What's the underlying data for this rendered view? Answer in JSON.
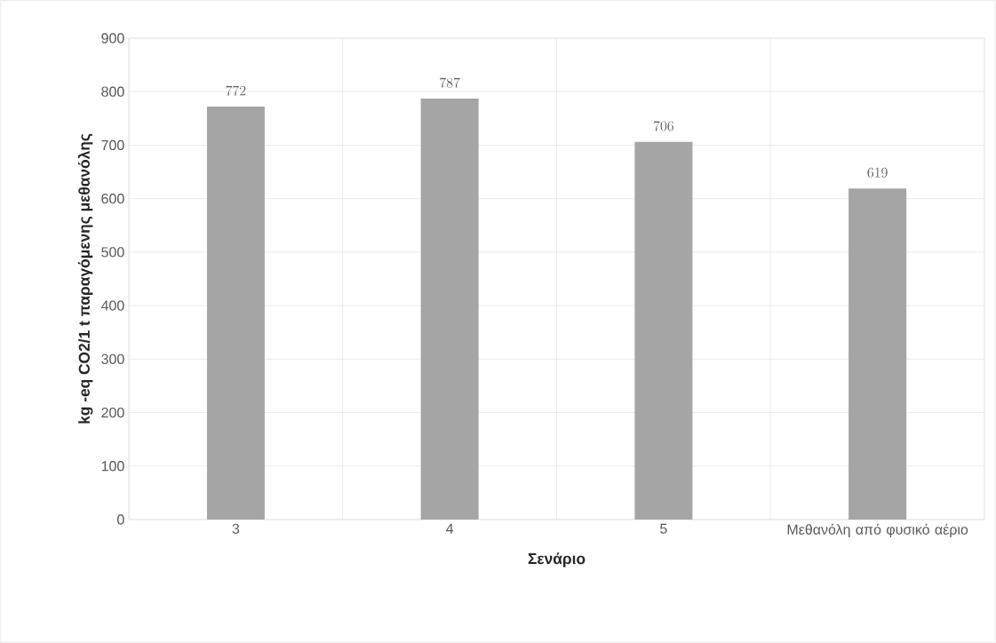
{
  "chart_data": {
    "type": "bar",
    "xlabel": "Σενάριο",
    "ylabel": "kg -eq CO2/1 t παραγόμενης μεθανόλης",
    "categories": [
      "3",
      "4",
      "5",
      "Μεθανόλη από φυσικό αέριο"
    ],
    "values": [
      772,
      787,
      706,
      619
    ],
    "color": "#a5a5a5",
    "ylim": [
      0,
      900
    ],
    "yticks": [
      0,
      100,
      200,
      300,
      400,
      500,
      600,
      700,
      800,
      900
    ],
    "grid": true,
    "data_labels": true
  }
}
